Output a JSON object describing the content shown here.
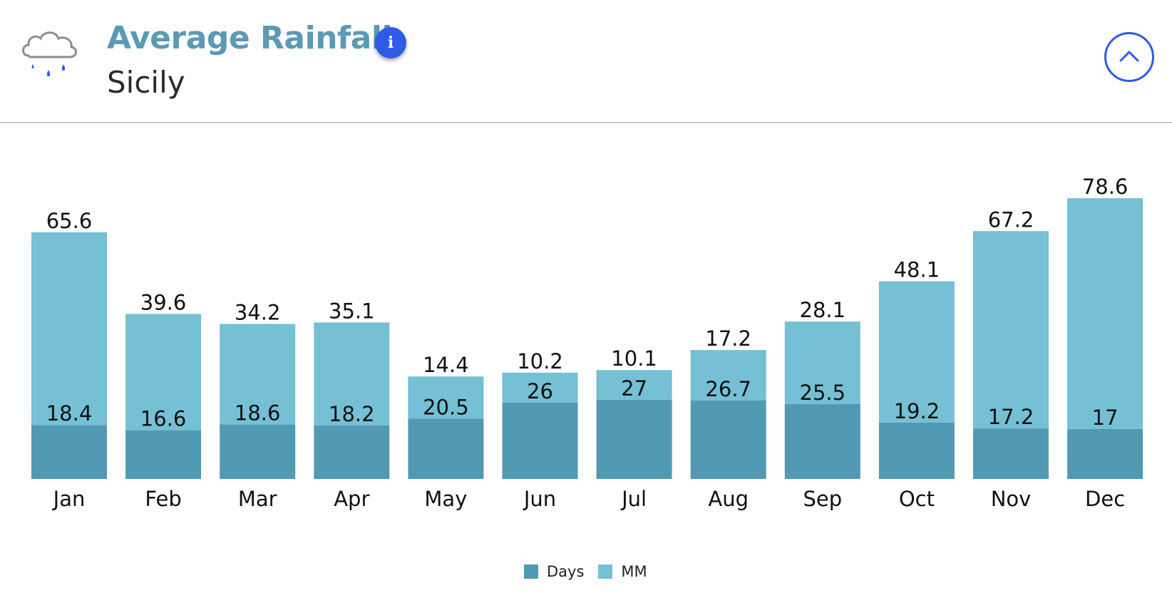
{
  "header": {
    "title": "Average Rainfall",
    "subtitle": "Sicily",
    "weather_icon": "rain-cloud-icon",
    "info_icon": "info-icon",
    "info_glyph": "i",
    "collapse_icon": "chevron-up-icon"
  },
  "colors": {
    "days": "#5299b3",
    "mm": "#75c0d4",
    "accent": "#2f5be8",
    "title": "#5b9ab5"
  },
  "chart_data": {
    "type": "bar",
    "stacked": true,
    "categories": [
      "Jan",
      "Feb",
      "Mar",
      "Apr",
      "May",
      "Jun",
      "Jul",
      "Aug",
      "Sep",
      "Oct",
      "Nov",
      "Dec"
    ],
    "series": [
      {
        "name": "Days",
        "values": [
          18.4,
          16.6,
          18.6,
          18.2,
          20.5,
          26,
          27,
          26.7,
          25.5,
          19.2,
          17.2,
          17
        ]
      },
      {
        "name": "MM",
        "values": [
          65.6,
          39.6,
          34.2,
          35.1,
          14.4,
          10.2,
          10.1,
          17.2,
          28.1,
          48.1,
          67.2,
          78.6
        ]
      }
    ],
    "ylim": [
      0,
      100
    ],
    "grid": false,
    "legend_position": "bottom-center"
  }
}
